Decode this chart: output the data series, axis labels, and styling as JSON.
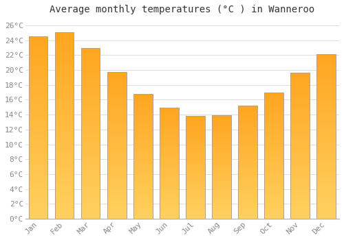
{
  "title": "Average monthly temperatures (°C ) in Wanneroo",
  "months": [
    "Jan",
    "Feb",
    "Mar",
    "Apr",
    "May",
    "Jun",
    "Jul",
    "Aug",
    "Sep",
    "Oct",
    "Nov",
    "Dec"
  ],
  "values": [
    24.5,
    25.1,
    23.0,
    19.7,
    16.8,
    14.9,
    13.8,
    13.9,
    15.2,
    17.0,
    19.6,
    22.1
  ],
  "bar_color_top": "#FFA520",
  "bar_color_bottom": "#FFD060",
  "bar_border_color": "#B8A080",
  "ylim": [
    0,
    27
  ],
  "ytick_step": 2,
  "background_color": "#FFFFFF",
  "grid_color": "#DDDDDD",
  "title_fontsize": 10,
  "tick_fontsize": 8,
  "tick_color": "#888888",
  "title_color": "#333333"
}
